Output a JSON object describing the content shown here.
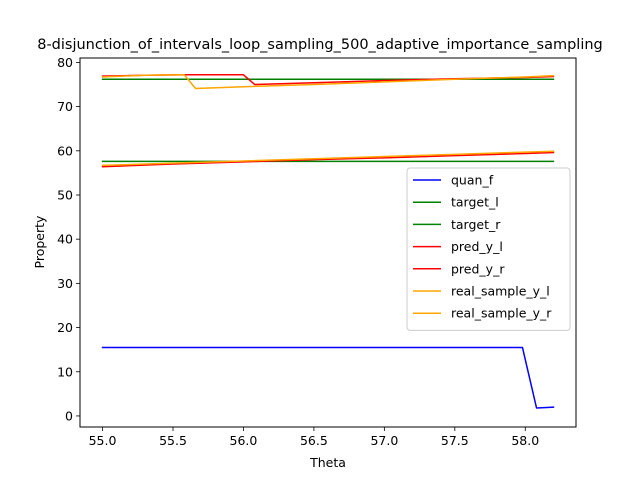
{
  "chart_data": {
    "type": "line",
    "title": "8-disjunction_of_intervals_loop_sampling_500_adaptive_importance_sampling",
    "xlabel": "Theta",
    "ylabel": "Property",
    "xlim": [
      54.84,
      58.36
    ],
    "ylim": [
      -2.5,
      81.0
    ],
    "xticks": [
      "55.0",
      "55.5",
      "56.0",
      "56.5",
      "57.0",
      "57.5",
      "58.0"
    ],
    "yticks": [
      "0",
      "10",
      "20",
      "30",
      "40",
      "50",
      "60",
      "70",
      "80"
    ],
    "grid": false,
    "legend_position": "center-right",
    "series": [
      {
        "name": "quan_f",
        "color": "#0000ff",
        "x": [
          55.0,
          55.2,
          55.4,
          55.6,
          55.8,
          56.0,
          56.2,
          56.4,
          56.6,
          56.8,
          57.0,
          57.2,
          57.4,
          57.6,
          57.8,
          57.98,
          58.08,
          58.2
        ],
        "y": [
          15.5,
          15.5,
          15.5,
          15.5,
          15.5,
          15.5,
          15.5,
          15.5,
          15.5,
          15.5,
          15.5,
          15.5,
          15.5,
          15.5,
          15.5,
          15.5,
          1.8,
          2.0
        ]
      },
      {
        "name": "target_l",
        "color": "#008000",
        "x": [
          55.0,
          58.2
        ],
        "y": [
          57.6,
          57.6
        ]
      },
      {
        "name": "target_r",
        "color": "#008000",
        "x": [
          55.0,
          58.2
        ],
        "y": [
          76.2,
          76.2
        ]
      },
      {
        "name": "pred_y_l",
        "color": "#ff0000",
        "x": [
          55.0,
          55.5,
          56.0,
          56.5,
          57.0,
          57.5,
          58.0,
          58.2
        ],
        "y": [
          56.4,
          57.0,
          57.5,
          58.0,
          58.4,
          58.9,
          59.4,
          59.6
        ]
      },
      {
        "name": "pred_y_r",
        "color": "#ff0000",
        "x": [
          55.0,
          55.3,
          55.6,
          55.8,
          56.0,
          56.08,
          56.5,
          57.0,
          57.5,
          58.0,
          58.2
        ],
        "y": [
          76.9,
          77.1,
          77.2,
          77.2,
          77.2,
          75.0,
          75.4,
          75.9,
          76.3,
          76.6,
          76.8
        ]
      },
      {
        "name": "real_sample_y_l",
        "color": "#ffa500",
        "x": [
          55.0,
          55.5,
          56.0,
          56.5,
          57.0,
          57.5,
          58.0,
          58.2
        ],
        "y": [
          56.7,
          57.2,
          57.7,
          58.2,
          58.7,
          59.2,
          59.7,
          59.9
        ]
      },
      {
        "name": "real_sample_y_r",
        "color": "#ffa500",
        "x": [
          55.0,
          55.3,
          55.58,
          55.66,
          56.0,
          56.5,
          57.0,
          57.5,
          58.0,
          58.2
        ],
        "y": [
          76.7,
          77.1,
          77.2,
          74.1,
          74.5,
          75.0,
          75.6,
          76.2,
          76.7,
          77.0
        ]
      }
    ]
  }
}
